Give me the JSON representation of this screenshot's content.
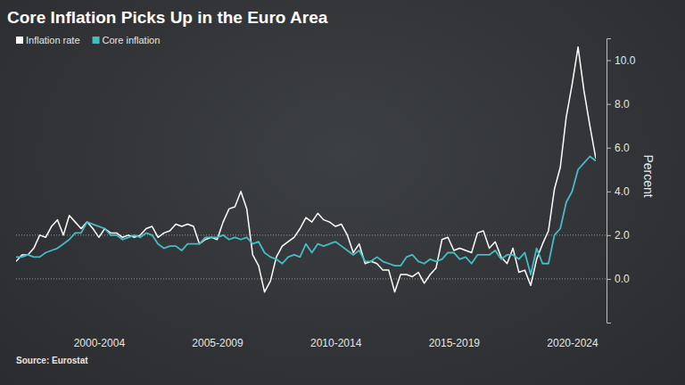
{
  "chart_data": {
    "type": "line",
    "title": "Core Inflation Picks Up in the Euro Area",
    "source": "Source: Eurostat",
    "y_label": "Percent",
    "legend": "top-left",
    "categories": [
      null,
      null,
      null,
      null,
      null,
      null,
      null,
      null,
      null,
      null,
      null,
      null,
      null,
      null,
      "2000-2004",
      null,
      null,
      null,
      null,
      null,
      null,
      null,
      null,
      null,
      null,
      null,
      null,
      null,
      null,
      null,
      null,
      null,
      null,
      null,
      "2005-2009",
      null,
      null,
      null,
      null,
      null,
      null,
      null,
      null,
      null,
      null,
      null,
      null,
      null,
      null,
      null,
      null,
      null,
      null,
      null,
      "2010-2014",
      null,
      null,
      null,
      null,
      null,
      null,
      null,
      null,
      null,
      null,
      null,
      null,
      null,
      null,
      null,
      null,
      null,
      null,
      null,
      "2015-2019",
      null,
      null,
      null,
      null,
      null,
      null,
      null,
      null,
      null,
      null,
      null,
      null,
      null,
      null,
      null,
      null,
      null,
      null,
      null,
      "2020-2024",
      null,
      null,
      null,
      null
    ],
    "series": [
      {
        "name": "Inflation rate",
        "color": "#ffffff",
        "values": [
          0.8,
          1.1,
          1.1,
          1.4,
          2.0,
          1.9,
          2.4,
          2.7,
          2.0,
          2.9,
          2.6,
          2.3,
          2.6,
          2.3,
          1.9,
          2.3,
          2.1,
          2.1,
          1.9,
          2.0,
          1.9,
          2.0,
          2.3,
          2.4,
          1.9,
          2.1,
          2.2,
          2.5,
          2.4,
          2.5,
          2.4,
          1.6,
          1.8,
          1.9,
          1.8,
          2.6,
          3.2,
          3.3,
          4.0,
          3.2,
          1.1,
          0.6,
          -0.6,
          -0.1,
          1.0,
          1.5,
          1.7,
          1.9,
          2.3,
          2.8,
          2.6,
          3.0,
          2.7,
          2.6,
          2.4,
          2.5,
          2.0,
          1.2,
          1.6,
          0.7,
          0.8,
          0.7,
          0.4,
          0.4,
          -0.6,
          0.2,
          0.2,
          0.1,
          0.3,
          -0.2,
          0.2,
          0.5,
          1.8,
          1.9,
          1.3,
          1.4,
          1.3,
          1.2,
          2.1,
          2.2,
          1.4,
          1.7,
          1.0,
          0.7,
          1.4,
          0.3,
          0.4,
          -0.3,
          0.9,
          1.6,
          2.2,
          4.1,
          5.1,
          7.4,
          8.9,
          10.6,
          8.6,
          7.0,
          5.5
        ]
      },
      {
        "name": "Core inflation",
        "color": "#45bcc3",
        "values": [
          1.0,
          1.0,
          1.1,
          1.0,
          1.0,
          1.2,
          1.3,
          1.4,
          1.6,
          1.8,
          2.1,
          2.1,
          2.6,
          2.5,
          2.4,
          2.3,
          2.0,
          2.0,
          1.8,
          1.9,
          2.0,
          1.9,
          2.1,
          2.0,
          1.6,
          1.4,
          1.5,
          1.5,
          1.3,
          1.6,
          1.6,
          1.6,
          1.9,
          1.9,
          1.9,
          2.0,
          1.8,
          1.9,
          1.8,
          1.9,
          1.6,
          1.7,
          1.2,
          1.0,
          0.9,
          0.7,
          1.0,
          1.1,
          1.0,
          1.6,
          1.2,
          1.6,
          1.5,
          1.6,
          1.7,
          1.5,
          1.3,
          1.1,
          1.3,
          0.8,
          0.8,
          1.0,
          0.8,
          0.7,
          0.6,
          0.6,
          1.0,
          1.1,
          0.8,
          0.7,
          0.9,
          0.8,
          0.9,
          1.2,
          1.2,
          0.9,
          1.0,
          0.7,
          1.1,
          1.1,
          1.1,
          1.3,
          0.9,
          1.1,
          1.1,
          0.9,
          1.2,
          0.2,
          1.4,
          0.7,
          0.7,
          2.0,
          2.3,
          3.5,
          4.0,
          5.0,
          5.3,
          5.6,
          5.4
        ]
      }
    ],
    "ylim": [
      -2,
      11
    ],
    "yticks": [
      {
        "value": 0,
        "label": "0.0"
      },
      {
        "value": 2,
        "label": "2.0"
      },
      {
        "value": 4,
        "label": "4.0"
      },
      {
        "value": 6,
        "label": "6.0"
      },
      {
        "value": 8,
        "label": "8.0"
      },
      {
        "value": 10,
        "label": "10.0"
      }
    ],
    "reference_lines": [
      0,
      2
    ]
  }
}
